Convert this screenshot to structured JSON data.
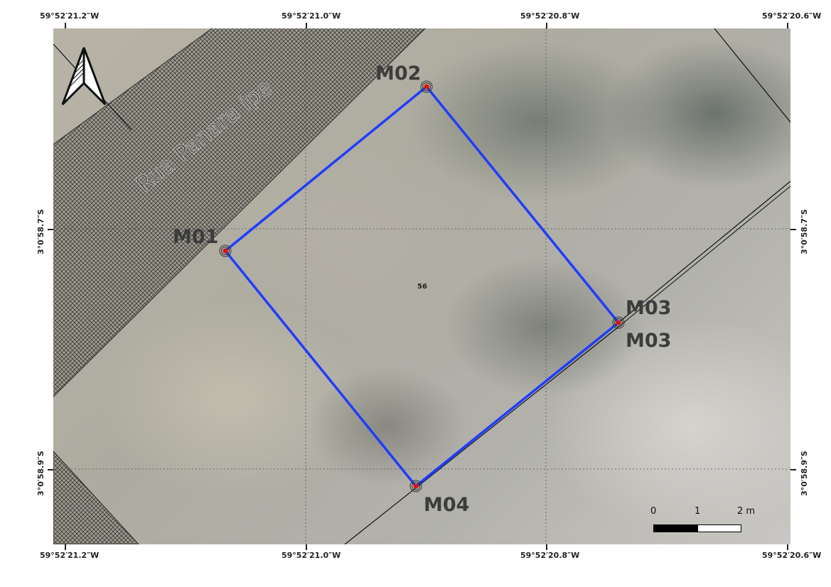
{
  "grid": {
    "top_labels": [
      "59°52′21.2″W",
      "59°52′21.0″W",
      "59°52′20.8″W",
      "59°52′20.6″W"
    ],
    "bottom_labels": [
      "59°52′21.2″W",
      "59°52′21.0″W",
      "59°52′20.8″W",
      "59°52′20.6″W"
    ],
    "left_labels": [
      "3°0′58.7″S",
      "3°0′58.9″S"
    ],
    "right_labels": [
      "3°0′58.7″S",
      "3°0′58.9″S"
    ]
  },
  "street": {
    "name": "Rua Panara ipe"
  },
  "parcel": {
    "number": "56",
    "boundary_color": "#1f3cff"
  },
  "markers": [
    {
      "id": "M01",
      "label": "M01"
    },
    {
      "id": "M02",
      "label": "M02"
    },
    {
      "id": "M03",
      "label": "M03",
      "label2": "M03"
    },
    {
      "id": "M04",
      "label": "M04"
    }
  ],
  "marker_color": "#e01010",
  "scale_bar": {
    "labels": [
      "0",
      "1",
      "2 m"
    ]
  },
  "north_arrow": {
    "icon": "north-arrow-icon"
  }
}
